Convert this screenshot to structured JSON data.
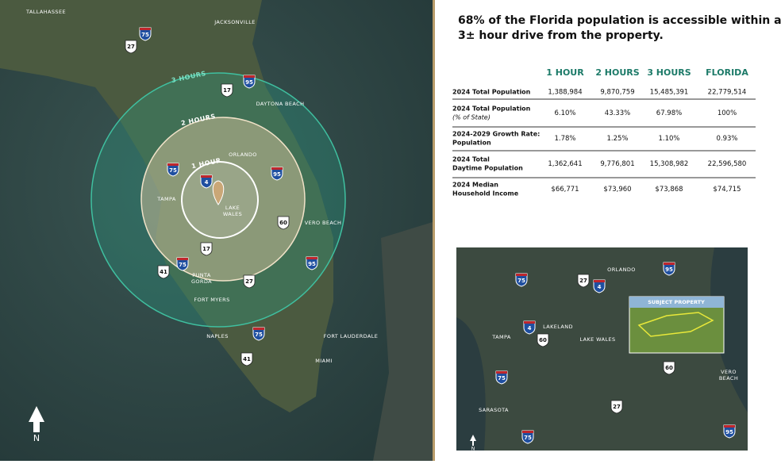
{
  "map": {
    "labels": [
      [
        "TALLAHASSEE"
      ],
      [
        "JACKSONVILLE"
      ],
      [
        "DAYTONA BEACH"
      ],
      [
        "ORLANDO"
      ],
      [
        "TAMPA"
      ],
      [
        "LAKE",
        "WALES"
      ],
      [
        "VERO BEACH"
      ],
      [
        "PUNTA",
        "GORDA"
      ],
      [
        "FORT MYERS"
      ],
      [
        "NAPLES"
      ],
      [
        "FORT LAUDERDALE"
      ],
      [
        "MIAMI"
      ]
    ],
    "ring_labels": [
      "3 HOURS",
      "2 HOURS",
      "1 HOUR"
    ],
    "shields": [
      "75",
      "27",
      "95",
      "17",
      "75",
      "4",
      "95",
      "60",
      "17",
      "41",
      "75",
      "95",
      "27",
      "75",
      "41"
    ],
    "compass": "N"
  },
  "heading": [
    "68% of the Florida population is accessible within a",
    "3± hour drive from the property."
  ],
  "table": {
    "columns": [
      "1 HOUR",
      "2 HOURS",
      "3 HOURS",
      "FLORIDA"
    ],
    "rows": [
      {
        "label": [
          "2024 Total Population"
        ],
        "cells": [
          "1,388,984",
          "9,870,759",
          "15,485,391",
          "22,779,514"
        ]
      },
      {
        "label": [
          "2024 Total Population",
          "(% of State)"
        ],
        "cells": [
          "6.10%",
          "43.33%",
          "67.98%",
          "100%"
        ]
      },
      {
        "label": [
          "2024-2029 Growth Rate:",
          "Population"
        ],
        "cells": [
          "1.78%",
          "1.25%",
          "1.10%",
          "0.93%"
        ]
      },
      {
        "label": [
          "2024 Total",
          "Daytime Population"
        ],
        "cells": [
          "1,362,641",
          "9,776,801",
          "15,308,982",
          "22,596,580"
        ]
      },
      {
        "label": [
          "2024 Median",
          "Household Income"
        ],
        "cells": [
          "$66,771",
          "$73,960",
          "$73,868",
          "$74,715"
        ]
      }
    ]
  },
  "inset": {
    "labels": [
      [
        "ORLANDO"
      ],
      [
        "LAKELAND"
      ],
      [
        "TAMPA"
      ],
      [
        "LAKE WALES"
      ],
      [
        "VERO",
        "BEACH"
      ],
      [
        "SARASOTA"
      ]
    ],
    "subject": "SUBJECT PROPERTY",
    "shields": [
      "75",
      "27",
      "4",
      "95",
      "4",
      "60",
      "60",
      "75",
      "27",
      "75",
      "95"
    ],
    "compass": "N"
  }
}
